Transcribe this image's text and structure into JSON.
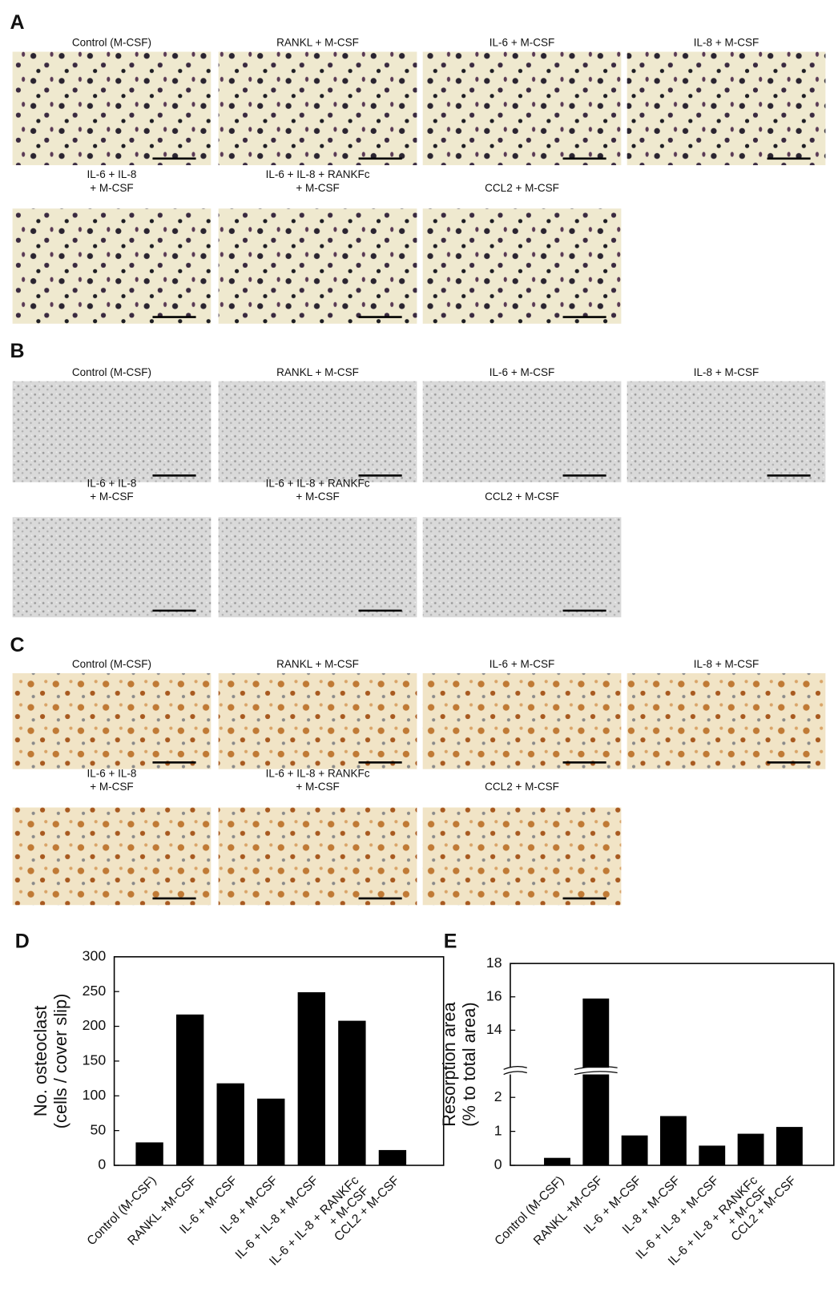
{
  "panels": [
    {
      "label": "A",
      "captions": [
        [
          "Control (M-CSF)"
        ],
        [
          "RANKL + M-CSF"
        ],
        [
          "IL-6 + M-CSF"
        ],
        [
          "IL-8 + M-CSF"
        ],
        [
          "IL-6 + IL-8",
          "+ M-CSF"
        ],
        [
          "IL-6 + IL-8 + RANKFc",
          "+ M-CSF"
        ],
        [
          "CCL2 + M-CSF"
        ]
      ]
    },
    {
      "label": "B",
      "captions": [
        [
          "Control (M-CSF)"
        ],
        [
          "RANKL + M-CSF"
        ],
        [
          "IL-6 + M-CSF"
        ],
        [
          "IL-8 + M-CSF"
        ],
        [
          "IL-6 + IL-8",
          "+ M-CSF"
        ],
        [
          "IL-6 + IL-8 + RANKFc",
          "+ M-CSF"
        ],
        [
          "CCL2 + M-CSF"
        ]
      ]
    },
    {
      "label": "C",
      "captions": [
        [
          "Control (M-CSF)"
        ],
        [
          "RANKL + M-CSF"
        ],
        [
          "IL-6 + M-CSF"
        ],
        [
          "IL-8 + M-CSF"
        ],
        [
          "IL-6 + IL-8",
          "+ M-CSF"
        ],
        [
          "IL-6 + IL-8 + RANKFc",
          "+ M-CSF"
        ],
        [
          "CCL2 + M-CSF"
        ]
      ]
    }
  ],
  "chart_data": [
    {
      "type": "bar",
      "panel_label": "D",
      "ylabel": [
        "No. osteoclast",
        "(cells / cover slip)"
      ],
      "categories": [
        [
          "Control (M-CSF)"
        ],
        [
          "RANKL +M-CSF"
        ],
        [
          "IL-6 + M-CSF"
        ],
        [
          "IL-8 + M-CSF"
        ],
        [
          "IL-6 + IL-8 + M-CSF"
        ],
        [
          "IL-6 + IL-8 + RANKFc",
          "+ M-CSF"
        ],
        [
          "CCL2 + M-CSF"
        ]
      ],
      "values": [
        33,
        217,
        118,
        96,
        249,
        208,
        22
      ],
      "color": "#000000",
      "ylim": [
        0,
        300
      ],
      "yticks": [
        0,
        50,
        100,
        150,
        200,
        250,
        300
      ]
    },
    {
      "type": "bar",
      "panel_label": "E",
      "ylabel": [
        "Resorption area",
        "(% to total area)"
      ],
      "categories": [
        [
          "Control (M-CSF)"
        ],
        [
          "RANKL +M-CSF"
        ],
        [
          "IL-6 + M-CSF"
        ],
        [
          "IL-8 + M-CSF"
        ],
        [
          "IL-6 + IL-8 + M-CSF"
        ],
        [
          "IL-6 + IL-8 + RANKFc",
          "+ M-CSF"
        ],
        [
          "CCL2 + M-CSF"
        ]
      ],
      "values": [
        0.22,
        15.9,
        0.88,
        1.45,
        0.58,
        0.93,
        1.13
      ],
      "color": "#000000",
      "ylim": [
        0,
        18
      ],
      "y_break": [
        2.7,
        11.7
      ],
      "yticks": [
        0,
        1,
        2,
        14,
        16,
        18
      ]
    }
  ]
}
